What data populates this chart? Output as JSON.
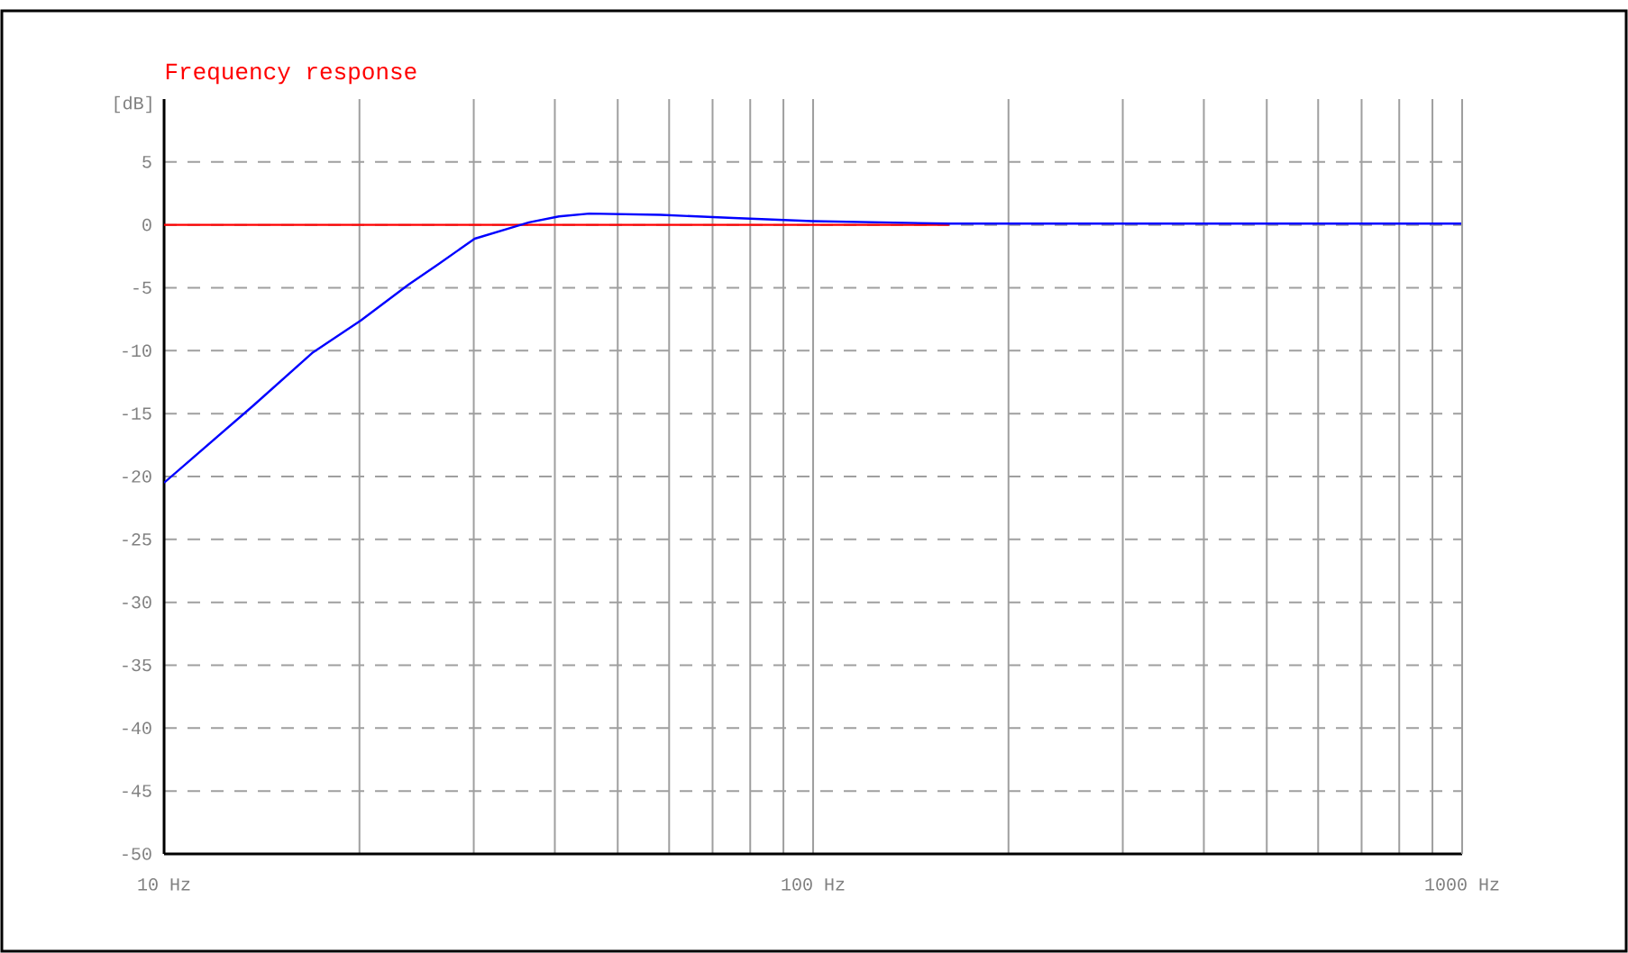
{
  "chart_data": {
    "type": "line",
    "title": "Frequency response",
    "ylabel": "[dB]",
    "log": "x",
    "grid": true,
    "xlim": [
      10,
      1000
    ],
    "ylim": [
      -50,
      10
    ],
    "xticks": [
      {
        "value": 10,
        "label": "10 Hz"
      },
      {
        "value": 100,
        "label": "100 Hz"
      },
      {
        "value": 1000,
        "label": "1000 Hz"
      }
    ],
    "yticks": [
      -50,
      -45,
      -40,
      -35,
      -30,
      -25,
      -20,
      -15,
      -10,
      -5,
      0,
      5
    ],
    "series": [
      {
        "color": "#ff0000",
        "x": [
          10,
          162
        ],
        "values": [
          0,
          0
        ]
      },
      {
        "color": "#0000ff",
        "x": [
          10,
          13.7,
          16.9,
          20.1,
          23.8,
          26.5,
          30.1,
          36.5,
          40.6,
          45.2,
          58.2,
          75.4,
          99.6,
          162,
          1000
        ],
        "values": [
          -20.5,
          -14.4,
          -10.2,
          -7.6,
          -4.75,
          -3.1,
          -1.1,
          0.2,
          0.67,
          0.9,
          0.8,
          0.55,
          0.3,
          0.1,
          0.1
        ]
      }
    ]
  }
}
